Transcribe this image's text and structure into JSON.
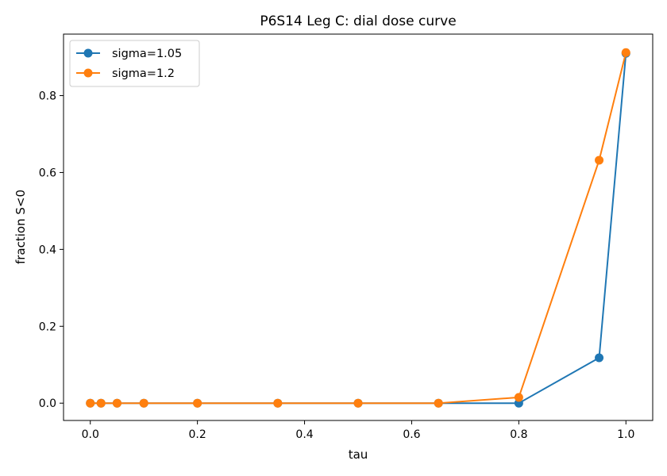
{
  "chart_data": {
    "type": "line",
    "title": "P6S14 Leg C: dial dose curve",
    "xlabel": "tau",
    "ylabel": "fraction S<0",
    "xlim": [
      -0.05,
      1.05
    ],
    "ylim": [
      -0.045,
      0.96
    ],
    "xticks": [
      0.0,
      0.2,
      0.4,
      0.6,
      0.8,
      1.0
    ],
    "xtick_labels": [
      "0.0",
      "0.2",
      "0.4",
      "0.6",
      "0.8",
      "1.0"
    ],
    "yticks": [
      0.0,
      0.2,
      0.4,
      0.6,
      0.8
    ],
    "ytick_labels": [
      "0.0",
      "0.2",
      "0.4",
      "0.6",
      "0.8"
    ],
    "grid": false,
    "legend_position": "top-left",
    "x": [
      0.0,
      0.02,
      0.05,
      0.1,
      0.2,
      0.35,
      0.5,
      0.65,
      0.8,
      0.95,
      1.0
    ],
    "series": [
      {
        "name": "sigma=1.05",
        "color": "#1f77b4",
        "values": [
          0.0,
          0.0,
          0.0,
          0.0,
          0.0,
          0.0,
          0.0,
          0.0,
          0.0,
          0.118,
          0.91
        ]
      },
      {
        "name": "sigma=1.2",
        "color": "#ff7f0e",
        "values": [
          0.0,
          0.0,
          0.0,
          0.0,
          0.0,
          0.0,
          0.0,
          0.0,
          0.015,
          0.632,
          0.912
        ]
      }
    ]
  }
}
